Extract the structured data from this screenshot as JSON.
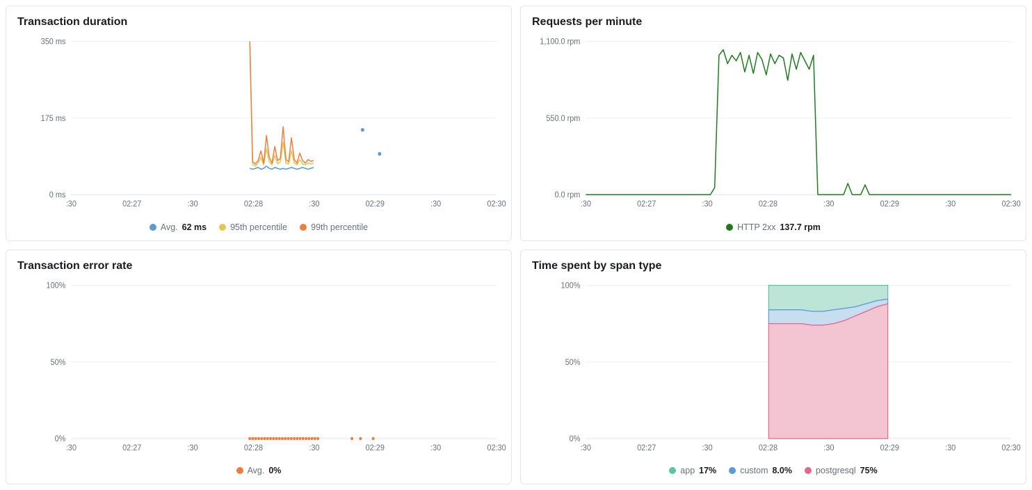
{
  "colors": {
    "border": "#e3e6ef",
    "grid": "#eef0f5",
    "axis_text": "#69707d",
    "text": "#1a1c21"
  },
  "panels": {
    "transaction_duration": {
      "title": "Transaction duration",
      "type": "line",
      "y_axis": {
        "min": 0,
        "max": 350,
        "ticks": [
          0,
          175,
          350
        ],
        "labels": [
          "0 ms",
          "175 ms",
          "350 ms"
        ]
      },
      "x_axis": {
        "labels": [
          ":30",
          "02:27",
          ":30",
          "02:28",
          ":30",
          "02:29",
          ":30",
          "02:30"
        ]
      },
      "series": [
        {
          "name": "avg",
          "label": "Avg.",
          "value_label": "62 ms",
          "color": "#5a9bd4",
          "stroke_width": 1.5,
          "data_start_x": 0.42,
          "data_end_x": 0.57,
          "values": [
            60,
            58,
            60,
            62,
            58,
            60,
            65,
            60,
            58,
            62,
            60,
            58,
            60,
            58,
            60,
            62,
            60,
            58,
            60,
            62,
            60,
            58,
            60,
            62
          ],
          "points": [
            {
              "x": 0.685,
              "y": 148
            },
            {
              "x": 0.725,
              "y": 93
            }
          ]
        },
        {
          "name": "p95",
          "label": "95th percentile",
          "value_label": "",
          "color": "#e0c850",
          "stroke_width": 1.5,
          "data_start_x": 0.42,
          "data_end_x": 0.57,
          "values": [
            350,
            70,
            65,
            72,
            85,
            68,
            105,
            75,
            68,
            90,
            70,
            75,
            120,
            72,
            70,
            100,
            72,
            68,
            80,
            70,
            68,
            72,
            70,
            72
          ]
        },
        {
          "name": "p99",
          "label": "99th percentile",
          "value_label": "",
          "color": "#ee7e3e",
          "stroke_width": 1.5,
          "data_start_x": 0.42,
          "data_end_x": 0.57,
          "values": [
            350,
            75,
            70,
            78,
            100,
            72,
            135,
            85,
            72,
            110,
            78,
            82,
            155,
            80,
            75,
            130,
            80,
            72,
            95,
            78,
            72,
            80,
            76,
            78
          ]
        }
      ]
    },
    "requests_per_minute": {
      "title": "Requests per minute",
      "type": "line",
      "y_axis": {
        "min": 0,
        "max": 1100,
        "ticks": [
          0,
          550,
          1100
        ],
        "labels": [
          "0.0 rpm",
          "550.0 rpm",
          "1,100.0 rpm"
        ]
      },
      "x_axis": {
        "labels": [
          ":30",
          "02:27",
          ":30",
          "02:28",
          ":30",
          "02:29",
          ":30",
          "02:30"
        ]
      },
      "series": [
        {
          "name": "http_2xx",
          "label": "HTTP 2xx",
          "value_label": "137.7 rpm",
          "color": "#1f7a1f",
          "stroke_width": 1.5,
          "full_width": true,
          "values": [
            0,
            0,
            0,
            0,
            0,
            0,
            0,
            0,
            0,
            0,
            0,
            0,
            0,
            0,
            0,
            0,
            0,
            0,
            0,
            0,
            0,
            0,
            0,
            0,
            0,
            0,
            0,
            0,
            0,
            0,
            50,
            1000,
            1040,
            940,
            1000,
            960,
            1020,
            880,
            1000,
            870,
            1020,
            970,
            860,
            1010,
            940,
            1000,
            980,
            820,
            1010,
            900,
            1020,
            960,
            900,
            1000,
            0,
            0,
            0,
            0,
            0,
            0,
            0,
            80,
            0,
            0,
            0,
            70,
            0,
            0,
            0,
            0,
            0,
            0,
            0,
            0,
            0,
            0,
            0,
            0,
            0,
            0,
            0,
            0,
            0,
            0,
            0,
            0,
            0,
            0,
            0,
            0,
            0,
            0,
            0,
            0,
            0,
            0,
            0,
            0,
            0,
            0
          ]
        }
      ]
    },
    "transaction_error_rate": {
      "title": "Transaction error rate",
      "type": "line",
      "y_axis": {
        "min": 0,
        "max": 100,
        "ticks": [
          0,
          50,
          100
        ],
        "labels": [
          "0%",
          "50%",
          "100%"
        ]
      },
      "x_axis": {
        "labels": [
          ":30",
          "02:27",
          ":30",
          "02:28",
          ":30",
          "02:29",
          ":30",
          "02:30"
        ]
      },
      "series": [
        {
          "name": "avg",
          "label": "Avg.",
          "value_label": "0%",
          "color": "#ee7e3e",
          "stroke_width": 2,
          "baseline_markers": true,
          "marker_start_x": 0.42,
          "marker_end_x": 0.58,
          "extra_markers_x": [
            0.66,
            0.68,
            0.71
          ]
        }
      ]
    },
    "time_spent_by_span_type": {
      "title": "Time spent by span type",
      "type": "stacked_area",
      "y_axis": {
        "min": 0,
        "max": 100,
        "ticks": [
          0,
          50,
          100
        ],
        "labels": [
          "0%",
          "50%",
          "100%"
        ]
      },
      "x_axis": {
        "labels": [
          ":30",
          "02:27",
          ":30",
          "02:28",
          ":30",
          "02:29",
          ":30",
          "02:30"
        ]
      },
      "area_start_x": 0.43,
      "area_end_x": 0.71,
      "series": [
        {
          "name": "app",
          "label": "app",
          "value_label": "17%",
          "color": "#5ec2a5",
          "fill": "#bce5d7",
          "top_values": [
            100,
            100,
            100,
            100,
            100,
            100,
            100,
            100,
            100,
            100,
            100,
            100
          ]
        },
        {
          "name": "custom",
          "label": "custom",
          "value_label": "8.0%",
          "color": "#5a9bd4",
          "fill": "#c7ddf0",
          "top_values": [
            84,
            84,
            84,
            84,
            83,
            83,
            84,
            85,
            86,
            88,
            90,
            91
          ]
        },
        {
          "name": "postgresql",
          "label": "postgresql",
          "value_label": "75%",
          "color": "#e06a8a",
          "fill": "#f3c4d2",
          "top_values": [
            75,
            75,
            75,
            75,
            74,
            74,
            75,
            77,
            80,
            83,
            86,
            88
          ]
        }
      ]
    }
  }
}
